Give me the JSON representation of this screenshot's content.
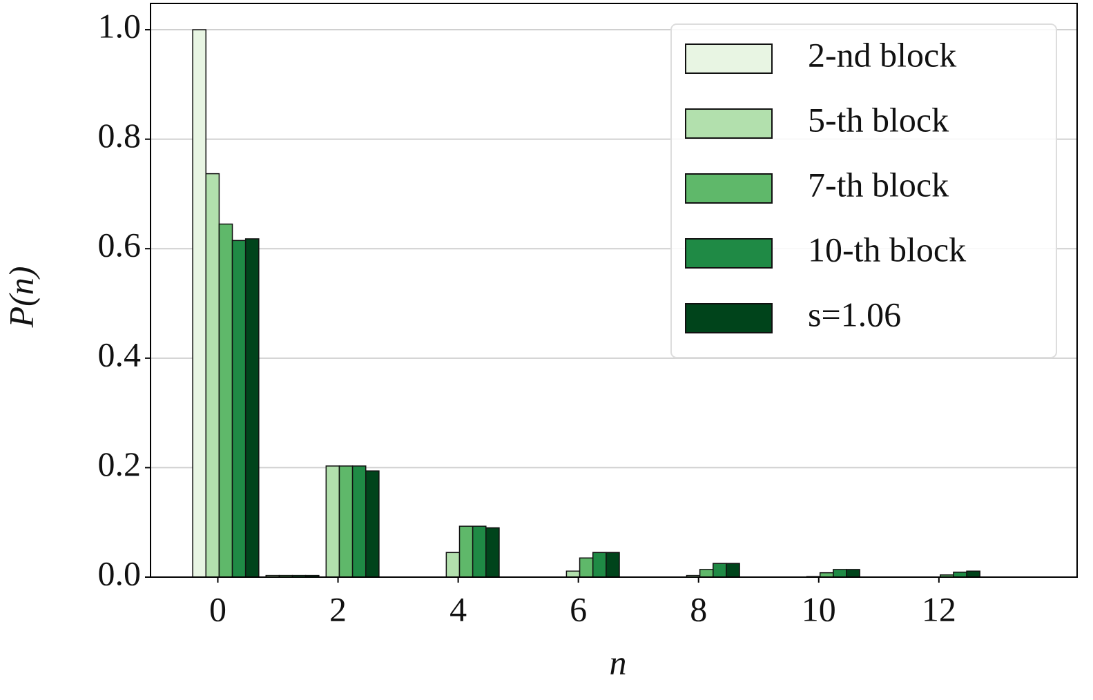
{
  "chart_data": {
    "type": "bar",
    "xlabel": "n",
    "ylabel": "P(n)",
    "x": [
      0,
      1,
      2,
      3,
      4,
      5,
      6,
      7,
      8,
      9,
      10,
      11,
      12,
      13
    ],
    "series": [
      {
        "name": "2-nd block",
        "color": "#e8f5e3",
        "values": [
          1.0,
          0,
          0,
          0,
          0,
          0,
          0,
          0,
          0,
          0,
          0,
          0,
          0,
          0
        ]
      },
      {
        "name": "5-th block",
        "color": "#b2e0ad",
        "values": [
          0.737,
          0.003,
          0.203,
          0,
          0.045,
          0,
          0.011,
          0,
          0.003,
          0,
          0.001,
          0,
          0,
          0
        ]
      },
      {
        "name": "7-th block",
        "color": "#5fb86a",
        "values": [
          0.645,
          0.003,
          0.203,
          0,
          0.093,
          0,
          0.035,
          0,
          0.014,
          0,
          0.008,
          0,
          0.004,
          0
        ]
      },
      {
        "name": "10-th block",
        "color": "#1f8a45",
        "values": [
          0.615,
          0.003,
          0.203,
          0,
          0.093,
          0,
          0.045,
          0,
          0.025,
          0,
          0.014,
          0,
          0.009,
          0
        ]
      },
      {
        "name": "s=1.06",
        "color": "#00441b",
        "values": [
          0.618,
          0.003,
          0.194,
          0,
          0.09,
          0,
          0.045,
          0,
          0.025,
          0,
          0.014,
          0,
          0.011,
          0
        ]
      }
    ],
    "xlim": [
      -1.12,
      14.3
    ],
    "xticks": [
      0,
      2,
      4,
      6,
      8,
      10,
      12
    ],
    "ylim": [
      0,
      1.048
    ],
    "yticks": [
      {
        "value": 0,
        "label": "0.0"
      },
      0.2,
      0.4,
      0.6,
      0.8,
      {
        "value": 1,
        "label": "1.0"
      }
    ],
    "grid": true,
    "legend": "upper right"
  }
}
